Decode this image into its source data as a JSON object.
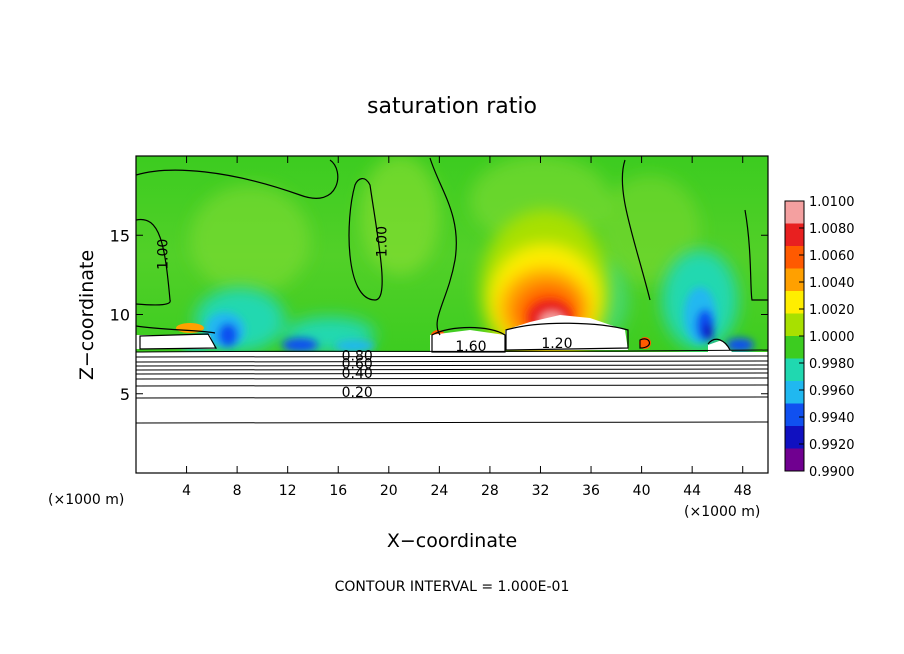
{
  "chart_data": {
    "type": "heatmap",
    "title": "saturation ratio",
    "xlabel": "X−coordinate",
    "ylabel": "Z−coordinate",
    "x_unit": "(×1000 m)",
    "xlim": [
      0,
      50
    ],
    "ylim": [
      0,
      20
    ],
    "x_ticks": [
      4,
      8,
      12,
      16,
      20,
      24,
      28,
      32,
      36,
      40,
      44,
      48
    ],
    "y_ticks": [
      5,
      10,
      15
    ],
    "footer": "CONTOUR INTERVAL = 1.000E-01",
    "colorbar": {
      "ticks": [
        "1.0100",
        "1.0080",
        "1.0060",
        "1.0040",
        "1.0020",
        "1.0000",
        "0.9980",
        "0.9960",
        "0.9940",
        "0.9920",
        "0.9900"
      ],
      "colors": [
        "#f4a0a0",
        "#e82020",
        "#ff5a00",
        "#ffa000",
        "#ffee00",
        "#a8e000",
        "#3ccc20",
        "#20d8b0",
        "#20b8f0",
        "#1050f0",
        "#1010c0",
        "#700090"
      ]
    },
    "contour_labels": [
      {
        "text": "1.00",
        "x": 19.8,
        "z": 14.6
      },
      {
        "text": "1.00",
        "x": 2.5,
        "z": 13.8
      },
      {
        "text": "1.60",
        "x": 26.5,
        "z": 7.7
      },
      {
        "text": "1.20",
        "x": 33.3,
        "z": 7.9
      },
      {
        "text": "0.80",
        "x": 17.5,
        "z": 7.1
      },
      {
        "text": "0.60",
        "x": 17.5,
        "z": 6.6
      },
      {
        "text": "0.40",
        "x": 17.5,
        "z": 6.0
      },
      {
        "text": "0.20",
        "x": 17.5,
        "z": 4.8
      }
    ]
  }
}
